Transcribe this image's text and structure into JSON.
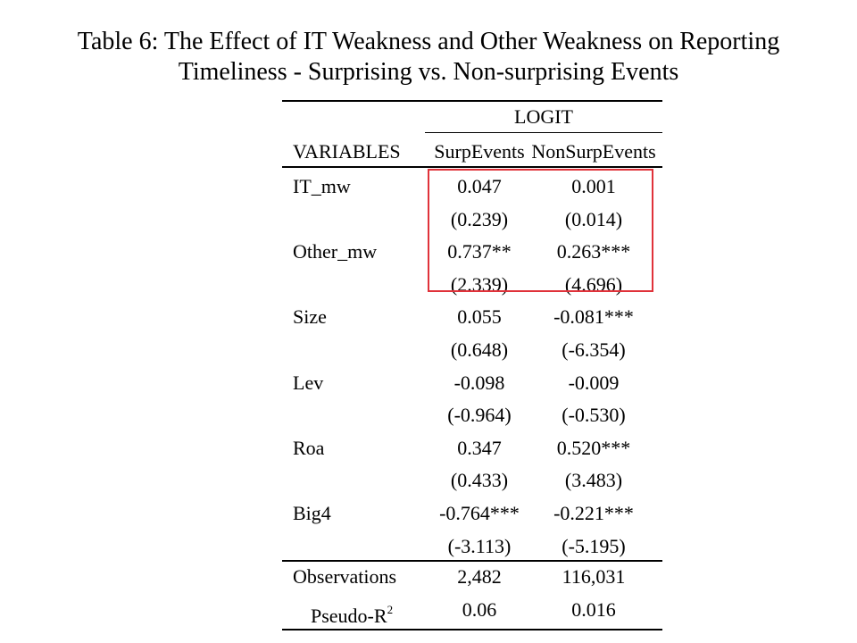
{
  "title": {
    "line1": "Table 6: The Effect of IT Weakness and Other Weakness on Reporting",
    "line2": "Timeliness - Surprising vs. Non-surprising Events"
  },
  "table": {
    "model": "LOGIT",
    "header": {
      "variables": "VARIABLES",
      "col1": "SurpEvents",
      "col2": "NonSurpEvents"
    },
    "rows": [
      {
        "label": "IT_mw",
        "col1": "0.047",
        "col2": "0.001"
      },
      {
        "label": "",
        "col1": "(0.239)",
        "col2": "(0.014)"
      },
      {
        "label": "Other_mw",
        "col1": "0.737**",
        "col2": "0.263***"
      },
      {
        "label": "",
        "col1": "(2.339)",
        "col2": "(4.696)"
      },
      {
        "label": "Size",
        "col1": "0.055",
        "col2": "-0.081***"
      },
      {
        "label": "",
        "col1": "(0.648)",
        "col2": "(-6.354)"
      },
      {
        "label": "Lev",
        "col1": "-0.098",
        "col2": "-0.009"
      },
      {
        "label": "",
        "col1": "(-0.964)",
        "col2": "(-0.530)"
      },
      {
        "label": "Roa",
        "col1": "0.347",
        "col2": "0.520***"
      },
      {
        "label": "",
        "col1": "(0.433)",
        "col2": "(3.483)"
      },
      {
        "label": "Big4",
        "col1": "-0.764***",
        "col2": "-0.221***"
      },
      {
        "label": "",
        "col1": "(-3.113)",
        "col2": "(-5.195)"
      }
    ],
    "footer": [
      {
        "label": "Observations",
        "col1": "2,482",
        "col2": "116,031"
      },
      {
        "label": "Pseudo-R",
        "label_sup": "2",
        "col1": "0.06",
        "col2": "0.016"
      }
    ]
  },
  "highlight_color": "#e0323a"
}
